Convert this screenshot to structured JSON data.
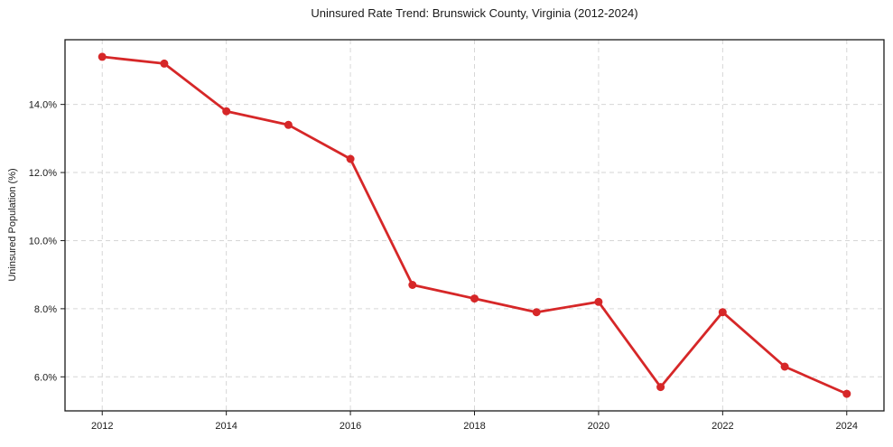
{
  "chart_data": {
    "type": "line",
    "title": "Uninsured Rate Trend: Brunswick County, Virginia (2012-2024)",
    "xlabel": "",
    "ylabel": "Uninsured Population (%)",
    "x": [
      2012,
      2013,
      2014,
      2015,
      2016,
      2017,
      2018,
      2019,
      2020,
      2021,
      2022,
      2023,
      2024
    ],
    "values": [
      15.4,
      15.2,
      13.8,
      13.4,
      12.4,
      8.7,
      8.3,
      7.9,
      8.2,
      5.7,
      7.9,
      6.3,
      5.5
    ],
    "xlim": [
      2011.4,
      2024.6
    ],
    "ylim": [
      5.0,
      15.9
    ],
    "xticks": [
      2012,
      2014,
      2016,
      2018,
      2020,
      2022,
      2024
    ],
    "xtick_labels": [
      "2012",
      "2014",
      "2016",
      "2018",
      "2020",
      "2022",
      "2024"
    ],
    "yticks": [
      6,
      8,
      10,
      12,
      14
    ],
    "ytick_labels": [
      "6.0%",
      "8.0%",
      "10.0%",
      "12.0%",
      "14.0%"
    ],
    "grid": true,
    "grid_style": "dashed",
    "legend": null,
    "line_color": "#d62728",
    "marker": "circle",
    "marker_color": "#d62728",
    "grid_color": "#d6d6d6",
    "axis_color": "#1a1a1a",
    "text_color": "#1a1a1a",
    "background": "#ffffff"
  }
}
